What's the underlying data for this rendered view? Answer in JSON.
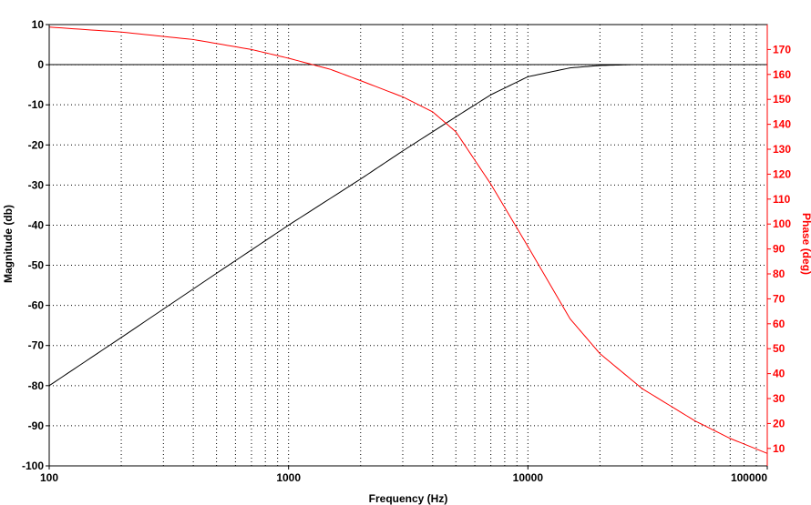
{
  "chart_data": {
    "type": "line",
    "xlabel": "Frequency (Hz)",
    "ylabel_left": "Magnitude (db)",
    "ylabel_right": "Phase (deg)",
    "x_scale": "log",
    "xlim": [
      100,
      100000
    ],
    "ylim_left": [
      -100,
      10
    ],
    "ylim_right": [
      3,
      180
    ],
    "x_ticks": [
      "100",
      "1000",
      "10000",
      "100000"
    ],
    "y_ticks_left": [
      "10",
      "0",
      "-10",
      "-20",
      "-30",
      "-40",
      "-50",
      "-60",
      "-70",
      "-80",
      "-90",
      "-100"
    ],
    "y_ticks_right": [
      "170",
      "160",
      "150",
      "140",
      "130",
      "120",
      "110",
      "100",
      "90",
      "80",
      "70",
      "60",
      "50",
      "40",
      "30",
      "20",
      "10"
    ],
    "grid": true,
    "colors": {
      "magnitude": "#000000",
      "phase": "#ff0000",
      "right_axis": "#ff0000"
    },
    "series": [
      {
        "axis": "left",
        "x": [
          100,
          200,
          500,
          1000,
          2000,
          3000,
          5000,
          7000,
          10000,
          15000,
          20000,
          27000
        ],
        "values": [
          -80,
          -68,
          -52,
          -40,
          -28.5,
          -21.5,
          -13,
          -7.5,
          -3,
          -0.8,
          -0.2,
          0
        ]
      },
      {
        "axis": "right",
        "x": [
          100,
          200,
          400,
          700,
          1000,
          1500,
          2000,
          3000,
          4000,
          5000,
          7000,
          10000,
          15000,
          20000,
          30000,
          50000,
          70000,
          100000
        ],
        "values": [
          179,
          177,
          174,
          170,
          166.5,
          162,
          157.5,
          151,
          145,
          137,
          116,
          91,
          62,
          48,
          34,
          21,
          14,
          8
        ]
      }
    ]
  }
}
